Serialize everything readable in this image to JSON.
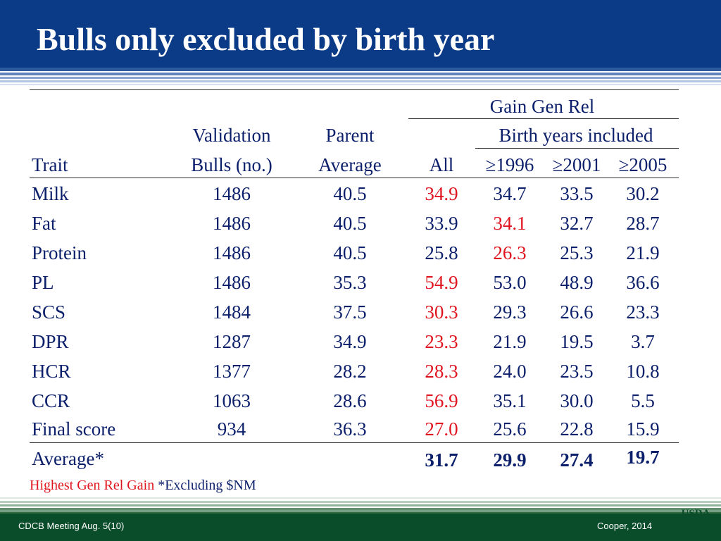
{
  "slide": {
    "title": "Bulls only excluded by birth year"
  },
  "table": {
    "group_header": "Gain Gen Rel",
    "subgroup_header": "Birth years included",
    "headers": {
      "trait": "Trait",
      "validation_line1": "Validation",
      "validation_line2": "Bulls (no.)",
      "parent_line1": "Parent",
      "parent_line2": "Average",
      "all": "All",
      "y1996": "≥1996",
      "y2001": "≥2001",
      "y2005": "≥2005"
    },
    "rows": [
      {
        "trait": "Milk",
        "bulls": "1486",
        "parent": "40.5",
        "all": "34.9",
        "y1996": "34.7",
        "y2001": "33.5",
        "y2005": "30.2",
        "highest": "all"
      },
      {
        "trait": "Fat",
        "bulls": "1486",
        "parent": "40.5",
        "all": "33.9",
        "y1996": "34.1",
        "y2001": "32.7",
        "y2005": "28.7",
        "highest": "y1996"
      },
      {
        "trait": "Protein",
        "bulls": "1486",
        "parent": "40.5",
        "all": "25.8",
        "y1996": "26.3",
        "y2001": "25.3",
        "y2005": "21.9",
        "highest": "y1996"
      },
      {
        "trait": "PL",
        "bulls": "1486",
        "parent": "35.3",
        "all": "54.9",
        "y1996": "53.0",
        "y2001": "48.9",
        "y2005": "36.6",
        "highest": "all"
      },
      {
        "trait": "SCS",
        "bulls": "1484",
        "parent": "37.5",
        "all": "30.3",
        "y1996": "29.3",
        "y2001": "26.6",
        "y2005": "23.3",
        "highest": "all"
      },
      {
        "trait": "DPR",
        "bulls": "1287",
        "parent": "34.9",
        "all": "23.3",
        "y1996": "21.9",
        "y2001": "19.5",
        "y2005": "3.7",
        "highest": "all"
      },
      {
        "trait": "HCR",
        "bulls": "1377",
        "parent": "28.2",
        "all": "28.3",
        "y1996": "24.0",
        "y2001": "23.5",
        "y2005": "10.8",
        "highest": "all"
      },
      {
        "trait": "CCR",
        "bulls": "1063",
        "parent": "28.6",
        "all": "56.9",
        "y1996": "35.1",
        "y2001": "30.0",
        "y2005": "5.5",
        "highest": "all"
      },
      {
        "trait": "Final score",
        "bulls": "934",
        "parent": "36.3",
        "all": "27.0",
        "y1996": "25.6",
        "y2001": "22.8",
        "y2005": "15.9",
        "highest": "all"
      }
    ],
    "average": {
      "label": "Average*",
      "all": "31.7",
      "y1996": "29.9",
      "y2001": "27.4",
      "y2005": "19.7"
    }
  },
  "footnote": {
    "highlight_text": "Highest Gen Rel Gain",
    "note_text": "*Excluding $NM"
  },
  "footer": {
    "left": "CDCB Meeting Aug. 5(10)",
    "right": "Cooper, 2014",
    "logo_text": "USDA"
  },
  "colors": {
    "title_bar": "#0b3a87",
    "text": "#0b1f6b",
    "highlight": "#e0141e",
    "footer_bar": "#0a4d2a"
  }
}
